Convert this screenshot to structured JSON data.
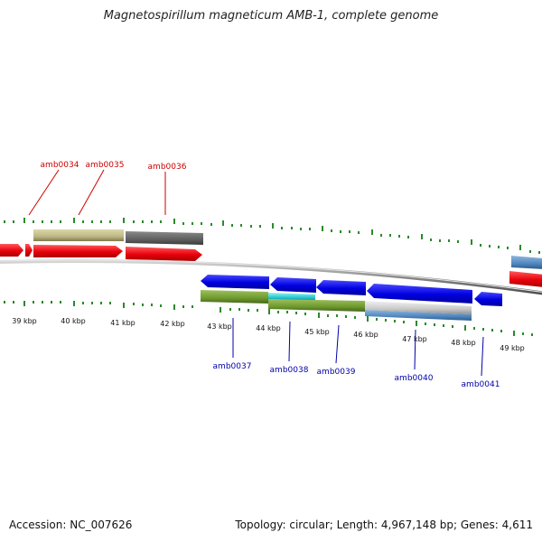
{
  "title": "Magnetospirillum magneticum AMB-1, complete genome",
  "accession": "Accession: NC_007626",
  "topology": "Topology: circular; Length: 4,967,148 bp; Genes: 4,611",
  "colors": {
    "forward_gene": "#e8000b",
    "reverse_gene": "#0000e0",
    "forward_label": "#cc0000",
    "reverse_label": "#0000aa",
    "tick": "#2a8a2a",
    "backbone": "#8a8a8a"
  },
  "scale_labels": [
    "39 kbp",
    "40 kbp",
    "41 kbp",
    "42 kbp",
    "43 kbp",
    "44 kbp",
    "45 kbp",
    "46 kbp",
    "47 kbp",
    "48 kbp",
    "49 kbp"
  ],
  "forward_genes": [
    "amb0034",
    "amb0035",
    "amb0036"
  ],
  "reverse_genes": [
    "amb0037",
    "amb0038",
    "amb0039",
    "amb0040",
    "amb0041"
  ]
}
